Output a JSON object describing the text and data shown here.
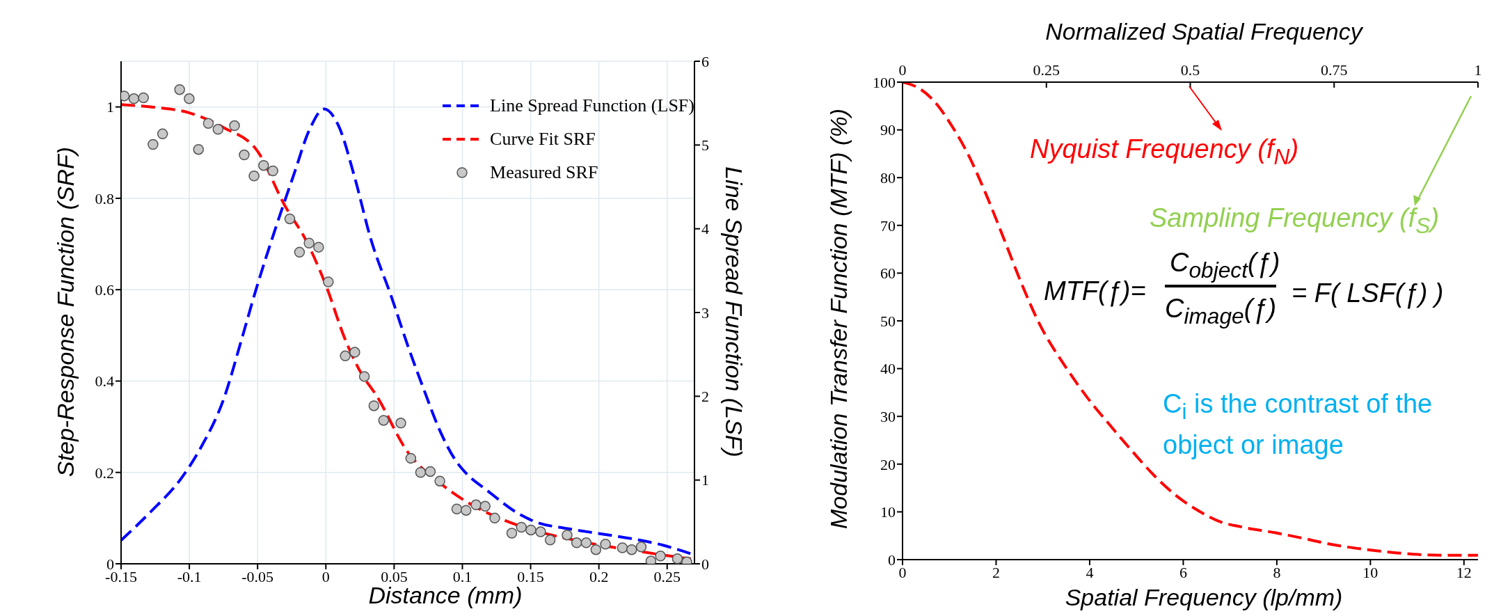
{
  "chart_data": [
    {
      "type": "line",
      "xlabel": "Distance (mm)",
      "ylabel": "Step-Response Function (SRF)",
      "y2label": "Line Spread Function (LSF)",
      "xlim": [
        -0.15,
        0.27
      ],
      "xticks": [
        -0.15,
        -0.1,
        -0.05,
        0,
        0.05,
        0.1,
        0.15,
        0.2,
        0.25
      ],
      "ylim": [
        0,
        1.1
      ],
      "yticks": [
        0,
        0.2,
        0.4,
        0.6,
        0.8,
        1
      ],
      "y2lim": [
        0,
        6
      ],
      "y2ticks": [
        0,
        1,
        2,
        3,
        4,
        5,
        6
      ],
      "grid": true,
      "legend": "top right",
      "series": [
        {
          "name": "Line Spread Function (LSF)",
          "type": "line",
          "axis": "y2",
          "color": "#0000ff",
          "line_style": "dashed",
          "x": [
            -0.15,
            -0.129,
            -0.1055,
            -0.0915,
            -0.075,
            -0.061,
            -0.0516,
            -0.0376,
            -0.0236,
            -0.0118,
            -0.0013,
            0.0093,
            0.021,
            0.0327,
            0.0484,
            0.0601,
            0.0718,
            0.0835,
            0.0952,
            0.1022,
            0.1186,
            0.142,
            0.1537,
            0.1772,
            0.2006,
            0.224,
            0.2474,
            0.2673
          ],
          "values": [
            0.28,
            0.61,
            1.03,
            1.39,
            1.96,
            2.72,
            3.25,
            3.97,
            4.64,
            5.19,
            5.43,
            5.23,
            4.62,
            3.89,
            3.17,
            2.6,
            2.08,
            1.59,
            1.23,
            1.09,
            0.87,
            0.59,
            0.5,
            0.42,
            0.36,
            0.3,
            0.22,
            0.12
          ]
        },
        {
          "name": "Curve Fit SRF",
          "type": "line",
          "color": "#ff0000",
          "line_style": "dashed",
          "x": [
            -0.15,
            -0.125,
            -0.1,
            -0.075,
            -0.05,
            -0.0306,
            -0.0142,
            0,
            0.014,
            0.0257,
            0.0367,
            0.0601,
            0.0835,
            0.1069,
            0.1303,
            0.1538,
            0.1772,
            0.2006,
            0.224,
            0.2474,
            0.2673
          ],
          "values": [
            1.005,
            0.999,
            0.987,
            0.955,
            0.903,
            0.787,
            0.706,
            0.61,
            0.492,
            0.418,
            0.37,
            0.244,
            0.177,
            0.129,
            0.096,
            0.072,
            0.055,
            0.041,
            0.03,
            0.019,
            0.011
          ]
        },
        {
          "name": "Measured SRF",
          "type": "scatter",
          "marker": "circle",
          "color": "#c8c8c8",
          "x": [
            -0.1477,
            -0.1406,
            -0.1336,
            -0.1266,
            -0.1196,
            -0.1071,
            -0.1001,
            -0.0933,
            -0.0861,
            -0.079,
            -0.0669,
            -0.0598,
            -0.0526,
            -0.0456,
            -0.0388,
            -0.0264,
            -0.0193,
            -0.0123,
            -0.0053,
            0.0018,
            0.0142,
            0.0212,
            0.0282,
            0.0352,
            0.0423,
            0.0549,
            0.0622,
            0.0694,
            0.0765,
            0.0835,
            0.0959,
            0.1027,
            0.11,
            0.1167,
            0.1237,
            0.1362,
            0.1432,
            0.1502,
            0.1573,
            0.1643,
            0.1767,
            0.1837,
            0.1907,
            0.1978,
            0.2048,
            0.2172,
            0.224,
            0.231,
            0.2381,
            0.2451,
            0.2575,
            0.2644
          ],
          "values": [
            1.024,
            1.018,
            1.02,
            0.918,
            0.941,
            1.038,
            1.018,
            0.907,
            0.964,
            0.951,
            0.959,
            0.895,
            0.849,
            0.872,
            0.86,
            0.755,
            0.682,
            0.702,
            0.693,
            0.617,
            0.455,
            0.463,
            0.41,
            0.346,
            0.314,
            0.308,
            0.231,
            0.2,
            0.202,
            0.181,
            0.12,
            0.117,
            0.129,
            0.126,
            0.1,
            0.067,
            0.08,
            0.074,
            0.07,
            0.052,
            0.063,
            0.046,
            0.046,
            0.031,
            0.043,
            0.035,
            0.031,
            0.037,
            0.006,
            0.017,
            0.011,
            0.004
          ]
        }
      ]
    },
    {
      "type": "line",
      "xlabel": "Spatial Frequency (lp/mm)",
      "ylabel": "Modulation Transfer Function (MTF) (%)",
      "x2label": "Normalized Spatial Frequency",
      "xlim": [
        0,
        12.3
      ],
      "xticks": [
        0,
        2,
        4,
        6,
        8,
        10,
        12
      ],
      "x2lim": [
        0,
        1
      ],
      "x2ticks": [
        0,
        0.25,
        0.5,
        0.75,
        1
      ],
      "ylim": [
        0,
        100
      ],
      "yticks": [
        0,
        10,
        20,
        30,
        40,
        50,
        60,
        70,
        80,
        90,
        100
      ],
      "grid": false,
      "color": "#ff0000",
      "line_style": "dashed",
      "x": [
        0,
        0.37,
        0.65,
        1.03,
        1.41,
        1.79,
        2.17,
        2.54,
        2.92,
        3.49,
        3.96,
        4.43,
        4.91,
        5.38,
        5.85,
        6.33,
        6.8,
        7.27,
        7.98,
        8.69,
        9.16,
        9.92,
        10.58,
        11.53,
        12.3
      ],
      "values": [
        100,
        98.6,
        96.3,
        91.2,
        84.7,
        76.4,
        67.1,
        57.9,
        49.5,
        40.3,
        33.8,
        28.2,
        22.7,
        17.6,
        13.4,
        10.2,
        7.9,
        6.8,
        5.6,
        4.2,
        3.2,
        2.1,
        1.4,
        0.9,
        0.9
      ],
      "annotations": [
        "Nyquist Frequency (f$_{N}$)",
        "Sampling Frequency (f$_{S}$)",
        "MTF(ƒ)=",
        "C$_{object}$(ƒ)",
        "C$_{image}$(ƒ)",
        "= F( LSF(ƒ) )",
        "C$_{i}$ is the contrast of the object or image"
      ]
    }
  ]
}
